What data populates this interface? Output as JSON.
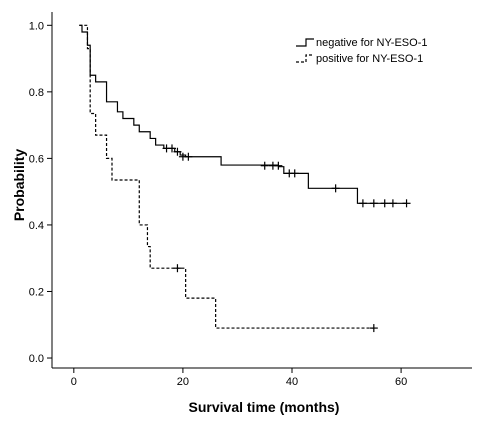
{
  "chart_data": {
    "type": "line",
    "subtype": "kaplan-meier-step",
    "title": "",
    "xlabel": "Survival time (months)",
    "ylabel": "Probability",
    "xlim": [
      -4,
      73
    ],
    "ylim": [
      -0.03,
      1.04
    ],
    "xticks": [
      0,
      20,
      40,
      60
    ],
    "yticks": [
      0.0,
      0.2,
      0.4,
      0.6,
      0.8,
      1.0
    ],
    "ytick_labels": [
      "0.0",
      "0.2",
      "0.4",
      "0.6",
      "0.8",
      "1.0"
    ],
    "grid": false,
    "legend_position": "top-right",
    "series": [
      {
        "name": "negative for NY-ESO-1",
        "style": "solid",
        "color": "#000000",
        "steps": [
          [
            1.0,
            1.0
          ],
          [
            1.5,
            0.98
          ],
          [
            2.5,
            0.94
          ],
          [
            3.0,
            0.85
          ],
          [
            4.0,
            0.83
          ],
          [
            6.0,
            0.77
          ],
          [
            8.0,
            0.74
          ],
          [
            9.0,
            0.72
          ],
          [
            11.0,
            0.7
          ],
          [
            12.0,
            0.68
          ],
          [
            14.0,
            0.66
          ],
          [
            15.0,
            0.64
          ],
          [
            16.5,
            0.63
          ],
          [
            18.5,
            0.62
          ],
          [
            19.5,
            0.61
          ],
          [
            20.5,
            0.605
          ],
          [
            27.0,
            0.58
          ],
          [
            37.5,
            0.575
          ],
          [
            38.5,
            0.555
          ],
          [
            43.0,
            0.51
          ],
          [
            52.0,
            0.465
          ],
          [
            61.0,
            0.465
          ]
        ],
        "censored": [
          [
            17.0,
            0.63
          ],
          [
            18.0,
            0.63
          ],
          [
            19.0,
            0.62
          ],
          [
            20.0,
            0.605
          ],
          [
            21.0,
            0.605
          ],
          [
            35.0,
            0.578
          ],
          [
            36.5,
            0.578
          ],
          [
            37.5,
            0.578
          ],
          [
            39.5,
            0.555
          ],
          [
            40.5,
            0.555
          ],
          [
            48.0,
            0.51
          ],
          [
            53.0,
            0.465
          ],
          [
            55.0,
            0.465
          ],
          [
            57.0,
            0.465
          ],
          [
            58.5,
            0.465
          ],
          [
            61.0,
            0.465
          ]
        ]
      },
      {
        "name": "positive for NY-ESO-1",
        "style": "dashed",
        "color": "#000000",
        "steps": [
          [
            1.0,
            1.0
          ],
          [
            2.5,
            0.93
          ],
          [
            3.0,
            0.735
          ],
          [
            4.0,
            0.67
          ],
          [
            6.0,
            0.6
          ],
          [
            7.0,
            0.535
          ],
          [
            12.0,
            0.4
          ],
          [
            13.5,
            0.335
          ],
          [
            14.0,
            0.27
          ],
          [
            20.5,
            0.18
          ],
          [
            26.0,
            0.09
          ],
          [
            55.0,
            0.09
          ]
        ],
        "censored": [
          [
            19.0,
            0.27
          ],
          [
            55.0,
            0.09
          ]
        ]
      }
    ]
  }
}
